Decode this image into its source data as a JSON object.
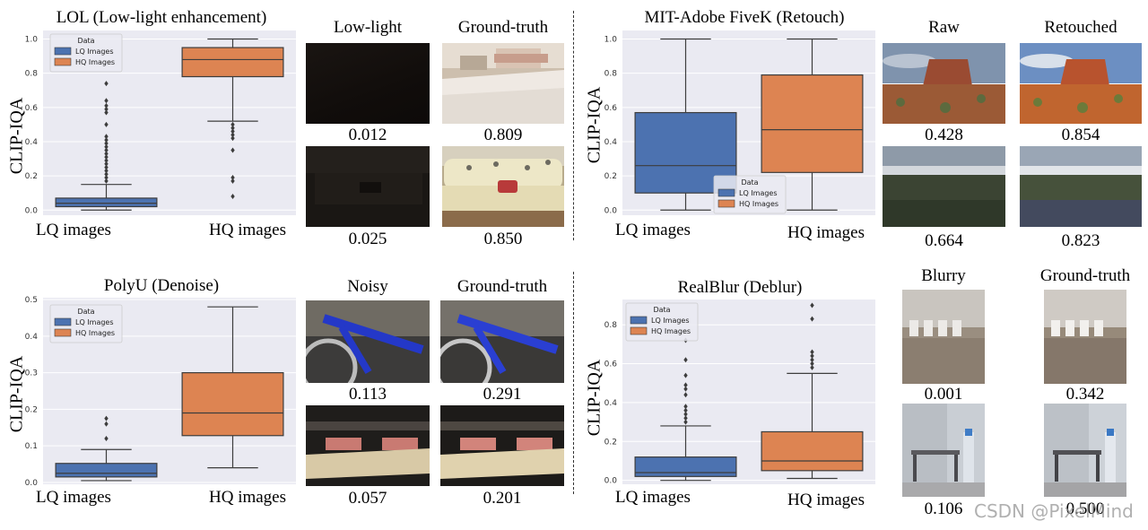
{
  "chart_data": [
    {
      "type": "box",
      "title": "LOL (Low-light enhancement)",
      "ylabel": "CLIP-IQA",
      "categories": [
        "LQ images",
        "HQ images"
      ],
      "ylim": [
        -0.03,
        1.05
      ],
      "yticks": [
        "0.0",
        "0.2",
        "0.4",
        "0.6",
        "0.8",
        "1.0"
      ],
      "legend": {
        "title": "Data",
        "entries": [
          "LQ Images",
          "HQ Images"
        ],
        "placement": "top-left"
      },
      "series": [
        {
          "name": "LQ Images",
          "color": "#4c72b0",
          "min": 0.0,
          "q1": 0.02,
          "median": 0.04,
          "q3": 0.07,
          "max": 0.15,
          "outliers": [
            0.17,
            0.19,
            0.21,
            0.23,
            0.25,
            0.27,
            0.29,
            0.31,
            0.33,
            0.35,
            0.37,
            0.39,
            0.41,
            0.43,
            0.5,
            0.57,
            0.59,
            0.61,
            0.64,
            0.74
          ]
        },
        {
          "name": "HQ Images",
          "color": "#dd8452",
          "min": 0.52,
          "q1": 0.78,
          "median": 0.88,
          "q3": 0.95,
          "max": 1.0,
          "outliers": [
            0.5,
            0.48,
            0.46,
            0.44,
            0.42,
            0.35,
            0.19,
            0.17,
            0.08
          ]
        }
      ]
    },
    {
      "type": "box",
      "title": "MIT-Adobe FiveK (Retouch)",
      "ylabel": "CLIP-IQA",
      "categories": [
        "LQ images",
        "HQ images"
      ],
      "ylim": [
        -0.03,
        1.05
      ],
      "yticks": [
        "0.0",
        "0.2",
        "0.4",
        "0.6",
        "0.8",
        "1.0"
      ],
      "legend": {
        "title": "Data",
        "entries": [
          "LQ Images",
          "HQ Images"
        ],
        "placement": "lower-center"
      },
      "series": [
        {
          "name": "LQ Images",
          "color": "#4c72b0",
          "min": 0.0,
          "q1": 0.1,
          "median": 0.26,
          "q3": 0.57,
          "max": 1.0,
          "outliers": []
        },
        {
          "name": "HQ Images",
          "color": "#dd8452",
          "min": 0.0,
          "q1": 0.22,
          "median": 0.47,
          "q3": 0.79,
          "max": 1.0,
          "outliers": []
        }
      ]
    },
    {
      "type": "box",
      "title": "PolyU (Denoise)",
      "ylabel": "CLIP-IQA",
      "categories": [
        "LQ images",
        "HQ images"
      ],
      "ylim": [
        -0.005,
        0.505
      ],
      "yticks": [
        "0.0",
        "0.1",
        "0.2",
        "0.3",
        "0.4",
        "0.5"
      ],
      "legend": {
        "title": "Data",
        "entries": [
          "LQ Images",
          "HQ Images"
        ],
        "placement": "top-left"
      },
      "series": [
        {
          "name": "LQ Images",
          "color": "#4c72b0",
          "min": 0.005,
          "q1": 0.015,
          "median": 0.025,
          "q3": 0.052,
          "max": 0.09,
          "outliers": [
            0.12,
            0.16,
            0.175
          ]
        },
        {
          "name": "HQ Images",
          "color": "#dd8452",
          "min": 0.04,
          "q1": 0.128,
          "median": 0.19,
          "q3": 0.3,
          "max": 0.48,
          "outliers": []
        }
      ]
    },
    {
      "type": "box",
      "title": "RealBlur (Deblur)",
      "ylabel": "CLIP-IQA",
      "categories": [
        "LQ images",
        "HQ images"
      ],
      "ylim": [
        -0.02,
        0.93
      ],
      "yticks": [
        "0.0",
        "0.2",
        "0.4",
        "0.6",
        "0.8"
      ],
      "legend": {
        "title": "Data",
        "entries": [
          "LQ Images",
          "HQ Images"
        ],
        "placement": "top-left"
      },
      "series": [
        {
          "name": "LQ Images",
          "color": "#4c72b0",
          "min": 0.0,
          "q1": 0.02,
          "median": 0.04,
          "q3": 0.12,
          "max": 0.28,
          "outliers": [
            0.3,
            0.32,
            0.34,
            0.36,
            0.38,
            0.44,
            0.47,
            0.49,
            0.54,
            0.62,
            0.72
          ]
        },
        {
          "name": "HQ Images",
          "color": "#dd8452",
          "min": 0.01,
          "q1": 0.05,
          "median": 0.1,
          "q3": 0.25,
          "max": 0.55,
          "outliers": [
            0.58,
            0.6,
            0.62,
            0.64,
            0.66,
            0.83,
            0.9
          ]
        }
      ]
    }
  ],
  "examples": {
    "lol": {
      "left_title": "Low-light",
      "right_title": "Ground-truth",
      "scores": [
        "0.012",
        "0.809",
        "0.025",
        "0.850"
      ]
    },
    "fivek": {
      "left_title": "Raw",
      "right_title": "Retouched",
      "scores": [
        "0.428",
        "0.854",
        "0.664",
        "0.823"
      ]
    },
    "polyu": {
      "left_title": "Noisy",
      "right_title": "Ground-truth",
      "scores": [
        "0.113",
        "0.291",
        "0.057",
        "0.201"
      ]
    },
    "realblur": {
      "left_title": "Blurry",
      "right_title": "Ground-truth",
      "scores": [
        "0.001",
        "0.342",
        "0.106",
        "0.500"
      ]
    }
  },
  "watermark": "CSDN @PixelMind"
}
